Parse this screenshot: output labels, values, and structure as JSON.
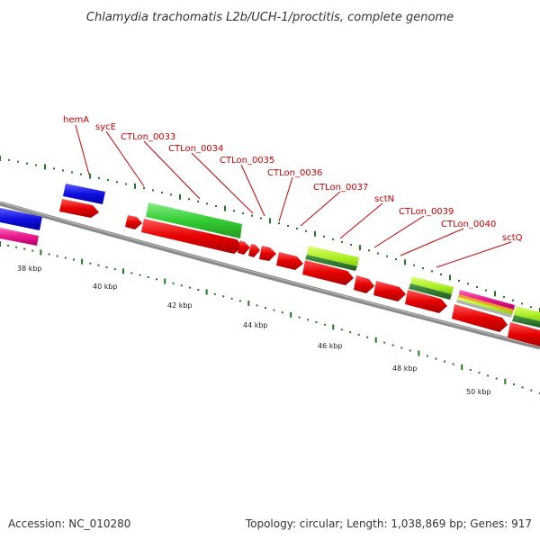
{
  "title": "Chlamydia trachomatis L2b/UCH-1/proctitis, complete genome",
  "footer": {
    "accession": "Accession: NC_010280",
    "summary": "Topology: circular; Length: 1,038,869 bp; Genes: 917"
  },
  "colors": {
    "backbone": "#8a8a8a",
    "gene_red": "#e60000",
    "blue": "#1010e0",
    "magenta": "#e8188c",
    "green": "#33cc33",
    "lime": "#aaee22",
    "dark_green": "#2e7d2e",
    "tick": "#1e7a1e",
    "label_line": "#cc0000"
  },
  "scale": {
    "major_ticks": [
      {
        "kbp": 38,
        "label": "38 kbp"
      },
      {
        "kbp": 40,
        "label": "40 kbp"
      },
      {
        "kbp": 42,
        "label": "42 kbp"
      },
      {
        "kbp": 44,
        "label": "44 kbp"
      },
      {
        "kbp": 46,
        "label": "46 kbp"
      },
      {
        "kbp": 48,
        "label": "48 kbp"
      },
      {
        "kbp": 50,
        "label": "50 kbp"
      }
    ]
  },
  "gene_labels": [
    {
      "name": "hemA"
    },
    {
      "name": "sycE"
    },
    {
      "name": "CTLon_0033"
    },
    {
      "name": "CTLon_0034"
    },
    {
      "name": "CTLon_0035"
    },
    {
      "name": "CTLon_0036"
    },
    {
      "name": "CTLon_0037"
    },
    {
      "name": "sctN"
    },
    {
      "name": "CTLon_0039"
    },
    {
      "name": "CTLon_0040"
    },
    {
      "name": "sctQ"
    }
  ]
}
